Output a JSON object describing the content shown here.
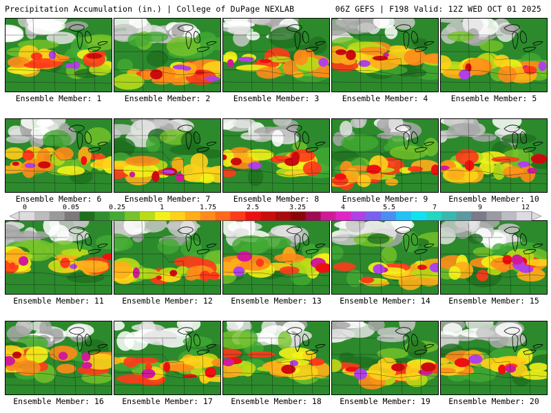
{
  "header": {
    "left": "Precipitation Accumulation (in.) | College of DuPage NEXLAB",
    "right": "06Z GEFS | F198 Valid: 12Z WED OCT 01 2025"
  },
  "colorbar": {
    "tick_labels": [
      "0",
      "0.05",
      "0.25",
      "1",
      "1.75",
      "2.5",
      "3.25",
      "4",
      "5.5",
      "7",
      "9",
      "12"
    ],
    "colors": [
      "#dcdcdc",
      "#bcbcbc",
      "#9a9a9a",
      "#7a7a7a",
      "#1f6f1f",
      "#2f8f2f",
      "#44aa33",
      "#77c42a",
      "#b8dc18",
      "#f2f21a",
      "#ffd21a",
      "#ffae1a",
      "#ff8c1a",
      "#ff6a1a",
      "#ff3a1a",
      "#ee1010",
      "#cc0c0c",
      "#aa0a0a",
      "#880808",
      "#a00a50",
      "#d01a9a",
      "#e024c8",
      "#b040e8",
      "#7a60f0",
      "#4a8ef4",
      "#22c2f6",
      "#10e2f0",
      "#24d6c4",
      "#3ab8b0",
      "#5a9aa0",
      "#7a7a8a",
      "#9a9aa4",
      "#bcbcc4",
      "#dcdce2"
    ]
  },
  "members": [
    {
      "label": "Ensemble Member: 1"
    },
    {
      "label": "Ensemble Member: 2"
    },
    {
      "label": "Ensemble Member: 3"
    },
    {
      "label": "Ensemble Member: 4"
    },
    {
      "label": "Ensemble Member: 5"
    },
    {
      "label": "Ensemble Member: 6"
    },
    {
      "label": "Ensemble Member: 7"
    },
    {
      "label": "Ensemble Member: 8"
    },
    {
      "label": "Ensemble Member: 9"
    },
    {
      "label": "Ensemble Member: 10"
    },
    {
      "label": "Ensemble Member: 11"
    },
    {
      "label": "Ensemble Member: 12"
    },
    {
      "label": "Ensemble Member: 13"
    },
    {
      "label": "Ensemble Member: 14"
    },
    {
      "label": "Ensemble Member: 15"
    },
    {
      "label": "Ensemble Member: 16"
    },
    {
      "label": "Ensemble Member: 17"
    },
    {
      "label": "Ensemble Member: 18"
    },
    {
      "label": "Ensemble Member: 19"
    },
    {
      "label": "Ensemble Member: 20"
    }
  ]
}
